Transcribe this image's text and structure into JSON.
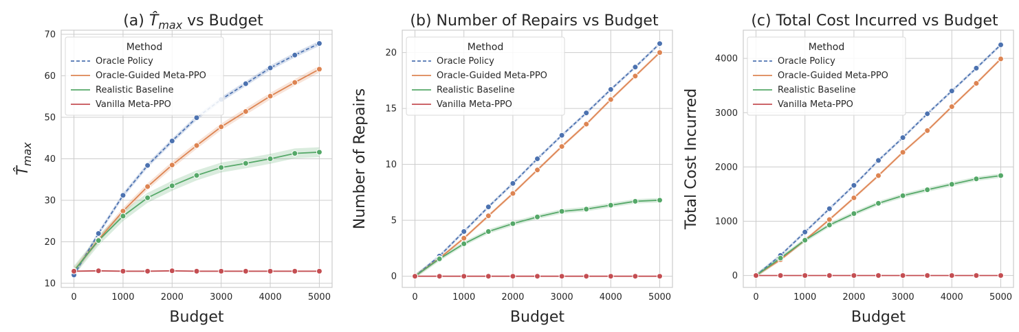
{
  "chart_data": [
    {
      "type": "line",
      "title_prefix": "(a) ",
      "title_symbol": "T̂",
      "title_sub": "max",
      "title_suffix": " vs Budget",
      "xlabel": "Budget",
      "ylabel_symbol": "T̂",
      "ylabel_sub": "max",
      "xlim": [
        -260,
        5260
      ],
      "ylim": [
        9,
        71
      ],
      "xticks": [
        0,
        1000,
        2000,
        3000,
        4000,
        5000
      ],
      "xtick_labels": [
        "0",
        "1000",
        "2000",
        "3000",
        "4000",
        "5000"
      ],
      "yticks": [
        10,
        20,
        30,
        40,
        50,
        60,
        70
      ],
      "ytick_labels": [
        "10",
        "20",
        "30",
        "40",
        "50",
        "60",
        "70"
      ],
      "x": [
        0,
        500,
        1000,
        1500,
        2000,
        2500,
        3000,
        3500,
        4000,
        4500,
        5000
      ],
      "legend_title": "Method",
      "series": [
        {
          "name": "Oracle Policy",
          "color": "#4c72b0",
          "dashed": true,
          "band": 0.6,
          "values": [
            12.0,
            22.0,
            31.2,
            38.4,
            44.3,
            49.9,
            54.3,
            58.1,
            61.9,
            65.0,
            67.8
          ]
        },
        {
          "name": "Oracle-Guided Meta-PPO",
          "color": "#dd8452",
          "dashed": false,
          "band": 0.8,
          "values": [
            13.0,
            20.5,
            27.4,
            33.3,
            38.5,
            43.2,
            47.7,
            51.4,
            55.1,
            58.4,
            61.6
          ]
        },
        {
          "name": "Realistic Baseline",
          "color": "#55a868",
          "dashed": false,
          "band": 1.2,
          "values": [
            13.0,
            20.3,
            26.2,
            30.6,
            33.5,
            36.0,
            37.9,
            38.9,
            40.0,
            41.3,
            41.6
          ]
        },
        {
          "name": "Vanilla Meta-PPO",
          "color": "#c44e52",
          "dashed": false,
          "band": 0.2,
          "values": [
            12.9,
            13.0,
            12.9,
            12.9,
            13.0,
            12.9,
            12.9,
            12.9,
            12.9,
            12.9,
            12.9
          ]
        }
      ]
    },
    {
      "type": "line",
      "title": "(b) Number of Repairs vs Budget",
      "xlabel": "Budget",
      "ylabel": "Number of Repairs",
      "xlim": [
        -260,
        5260
      ],
      "ylim": [
        -1,
        22
      ],
      "xticks": [
        0,
        1000,
        2000,
        3000,
        4000,
        5000
      ],
      "xtick_labels": [
        "0",
        "1000",
        "2000",
        "3000",
        "4000",
        "5000"
      ],
      "yticks": [
        0,
        5,
        10,
        15,
        20
      ],
      "ytick_labels": [
        "0",
        "5",
        "10",
        "15",
        "20"
      ],
      "x": [
        0,
        500,
        1000,
        1500,
        2000,
        2500,
        3000,
        3500,
        4000,
        4500,
        5000
      ],
      "legend_title": "Method",
      "series": [
        {
          "name": "Oracle Policy",
          "color": "#4c72b0",
          "dashed": true,
          "band": 0.15,
          "values": [
            0,
            1.8,
            4.0,
            6.2,
            8.3,
            10.5,
            12.6,
            14.6,
            16.7,
            18.7,
            20.8
          ]
        },
        {
          "name": "Oracle-Guided Meta-PPO",
          "color": "#dd8452",
          "dashed": false,
          "band": 0.15,
          "values": [
            0,
            1.6,
            3.4,
            5.4,
            7.4,
            9.5,
            11.6,
            13.6,
            15.8,
            17.9,
            20.0
          ]
        },
        {
          "name": "Realistic Baseline",
          "color": "#55a868",
          "dashed": false,
          "band": 0.2,
          "values": [
            0,
            1.55,
            2.9,
            4.0,
            4.7,
            5.3,
            5.8,
            6.0,
            6.35,
            6.7,
            6.8
          ]
        },
        {
          "name": "Vanilla Meta-PPO",
          "color": "#c44e52",
          "dashed": false,
          "band": 0.0,
          "values": [
            0,
            0,
            0,
            0,
            0,
            0,
            0,
            0,
            0,
            0,
            0
          ]
        }
      ]
    },
    {
      "type": "line",
      "title": "(c) Total Cost Incurred vs Budget",
      "xlabel": "Budget",
      "ylabel": "Total Cost Incurred",
      "xlim": [
        -260,
        5260
      ],
      "ylim": [
        -220,
        4520
      ],
      "xticks": [
        0,
        1000,
        2000,
        3000,
        4000,
        5000
      ],
      "xtick_labels": [
        "0",
        "1000",
        "2000",
        "3000",
        "4000",
        "5000"
      ],
      "yticks": [
        0,
        1000,
        2000,
        3000,
        4000
      ],
      "ytick_labels": [
        "0",
        "1000",
        "2000",
        "3000",
        "4000"
      ],
      "x": [
        0,
        500,
        1000,
        1500,
        2000,
        2500,
        3000,
        3500,
        4000,
        4500,
        5000
      ],
      "legend_title": "Method",
      "series": [
        {
          "name": "Oracle Policy",
          "color": "#4c72b0",
          "dashed": true,
          "band": 30,
          "values": [
            0,
            370,
            800,
            1230,
            1660,
            2120,
            2540,
            2980,
            3400,
            3820,
            4250
          ]
        },
        {
          "name": "Oracle-Guided Meta-PPO",
          "color": "#dd8452",
          "dashed": false,
          "band": 30,
          "values": [
            0,
            290,
            650,
            1030,
            1430,
            1840,
            2270,
            2670,
            3110,
            3540,
            3990
          ]
        },
        {
          "name": "Realistic Baseline",
          "color": "#55a868",
          "dashed": false,
          "band": 40,
          "values": [
            0,
            320,
            650,
            930,
            1140,
            1330,
            1470,
            1580,
            1680,
            1780,
            1840
          ]
        },
        {
          "name": "Vanilla Meta-PPO",
          "color": "#c44e52",
          "dashed": false,
          "band": 0,
          "values": [
            0,
            0,
            0,
            0,
            0,
            0,
            0,
            0,
            0,
            0,
            0
          ]
        }
      ]
    }
  ]
}
